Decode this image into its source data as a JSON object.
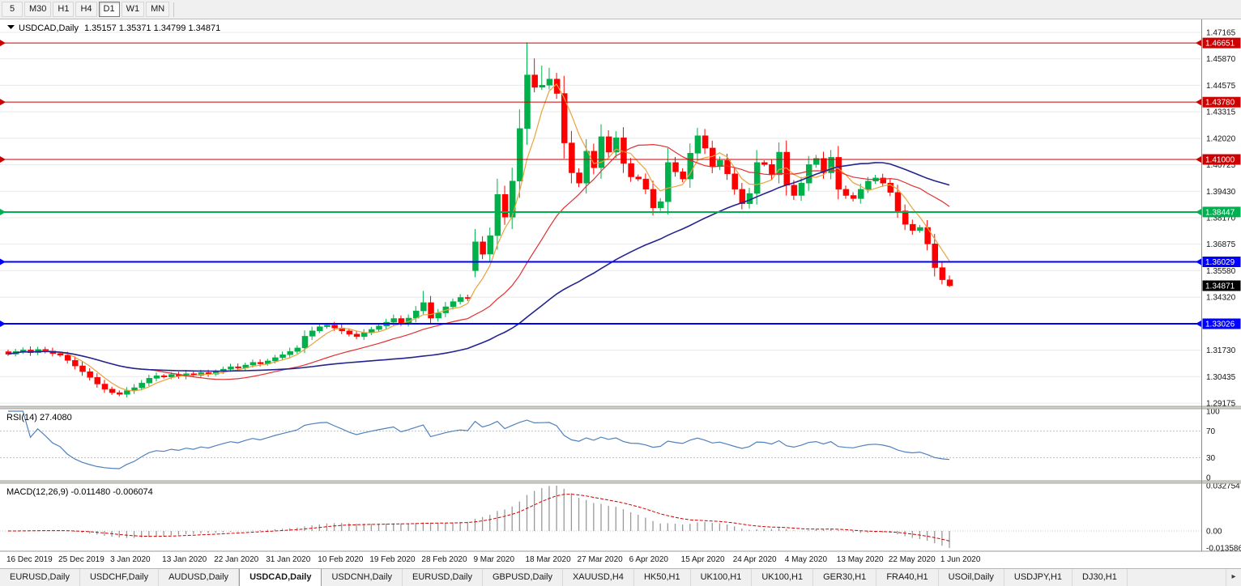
{
  "toolbar": {
    "periods": [
      {
        "label": "5",
        "active": false
      },
      {
        "label": "M30",
        "active": false
      },
      {
        "label": "H1",
        "active": false
      },
      {
        "label": "H4",
        "active": false
      },
      {
        "label": "D1",
        "active": true
      },
      {
        "label": "W1",
        "active": false
      },
      {
        "label": "MN",
        "active": false
      }
    ]
  },
  "chart": {
    "symbol": "USDCAD,Daily",
    "ohlc_readout": "1.35157 1.35371 1.34799 1.34871",
    "price_axis_ticks": [
      "1.47165",
      "1.45870",
      "1.44575",
      "1.43315",
      "1.42020",
      "1.40725",
      "1.39430",
      "1.38170",
      "1.36875",
      "1.35580",
      "1.34320",
      "1.33030",
      "1.31730",
      "1.30435",
      "1.29175"
    ],
    "levels": [
      {
        "price": 1.46651,
        "label": "1.46651",
        "color": "#cc0000",
        "width": 1
      },
      {
        "price": 1.4378,
        "label": "1.43780",
        "color": "#cc0000",
        "width": 1
      },
      {
        "price": 1.41,
        "label": "1.41000",
        "color": "#cc0000",
        "width": 1
      },
      {
        "price": 1.38447,
        "label": "1.38447",
        "color": "#00b050",
        "width": 2
      },
      {
        "price": 1.36029,
        "label": "1.36029",
        "color": "#0000ff",
        "width": 2
      },
      {
        "price": 1.33026,
        "label": "1.33026",
        "color": "#0000ff",
        "width": 2
      }
    ],
    "current_price": {
      "price": 1.34871,
      "label": "1.34871",
      "color": "#000000"
    }
  },
  "chart_data": {
    "type": "candlestick",
    "title": "USDCAD,Daily",
    "x_labels": [
      "16 Dec 2019",
      "25 Dec 2019",
      "3 Jan 2020",
      "13 Jan 2020",
      "22 Jan 2020",
      "31 Jan 2020",
      "10 Feb 2020",
      "19 Feb 2020",
      "28 Feb 2020",
      "9 Mar 2020",
      "18 Mar 2020",
      "27 Mar 2020",
      "6 Apr 2020",
      "15 Apr 2020",
      "24 Apr 2020",
      "4 May 2020",
      "13 May 2020",
      "22 May 2020",
      "1 Jun 2020"
    ],
    "label_every": 7,
    "y_range": {
      "top_tick": 1.47165,
      "bottom_tick": 1.29175
    },
    "closes": [
      1.3155,
      1.3168,
      1.3175,
      1.3162,
      1.3178,
      1.317,
      1.3158,
      1.315,
      1.3125,
      1.3098,
      1.307,
      1.3042,
      1.301,
      1.2985,
      1.2968,
      1.296,
      1.2978,
      1.2992,
      1.3015,
      1.3038,
      1.305,
      1.3044,
      1.3056,
      1.3048,
      1.306,
      1.3052,
      1.3065,
      1.3058,
      1.307,
      1.3082,
      1.3094,
      1.3088,
      1.3102,
      1.3115,
      1.3108,
      1.3122,
      1.3138,
      1.3152,
      1.3168,
      1.3185,
      1.3242,
      1.3268,
      1.3288,
      1.3296,
      1.3282,
      1.3268,
      1.3252,
      1.324,
      1.3258,
      1.3275,
      1.3292,
      1.331,
      1.3328,
      1.3305,
      1.333,
      1.3365,
      1.3405,
      1.333,
      1.3355,
      1.3385,
      1.341,
      1.343,
      1.3425,
      1.37,
      1.364,
      1.373,
      1.393,
      1.382,
      1.3995,
      1.425,
      1.451,
      1.445,
      1.446,
      1.449,
      1.442,
      1.418,
      1.4035,
      1.3985,
      1.414,
      1.406,
      1.421,
      1.4135,
      1.4205,
      1.408,
      1.4015,
      1.4005,
      1.3955,
      1.3865,
      1.3895,
      1.4085,
      1.404,
      1.4005,
      1.413,
      1.4215,
      1.4155,
      1.4065,
      1.4095,
      1.403,
      1.3955,
      1.3885,
      1.3935,
      1.4085,
      1.4075,
      1.4025,
      1.4135,
      1.3975,
      1.3925,
      1.3985,
      1.4075,
      1.4105,
      1.4035,
      1.411,
      1.3955,
      1.3925,
      1.391,
      1.3955,
      1.3995,
      1.401,
      1.3985,
      1.394,
      1.385,
      1.3785,
      1.3755,
      1.377,
      1.369,
      1.3575,
      1.3516,
      1.34871
    ],
    "candle_overrides": {
      "56": {
        "h": 1.3462
      },
      "63": {
        "o": 1.356,
        "h": 1.3762,
        "l": 1.3528
      },
      "70": {
        "h": 1.4668
      },
      "71": {
        "h": 1.459
      },
      "72": {
        "h": 1.4556
      },
      "73": {
        "h": 1.4545
      },
      "127": {
        "o": 1.35157,
        "h": 1.35371,
        "l": 1.34799,
        "c": 1.34871
      }
    },
    "up_color": "#00b04a",
    "down_color": "#ff0000",
    "moving_averages": [
      {
        "period": 5,
        "color": "#e8a33d"
      },
      {
        "period": 20,
        "color": "#e03030"
      },
      {
        "period": 50,
        "color": "#24248f"
      }
    ],
    "rsi": {
      "label": "RSI(14) 27.4080",
      "period": 14,
      "line_color": "#4f81bd",
      "ticks": [
        "100",
        "70",
        "30",
        "0"
      ],
      "levels": [
        70,
        30
      ]
    },
    "macd": {
      "label": "MACD(12,26,9) -0.011480 -0.006074",
      "fast": 12,
      "slow": 26,
      "signal": 9,
      "hist_color": "#999999",
      "signal_color": "#cc0000",
      "ticks": [
        {
          "pos": "max",
          "label": "0.032754"
        },
        {
          "pos": "zero",
          "label": "0.00"
        },
        {
          "pos": "min",
          "label": "-0.013586"
        }
      ]
    }
  },
  "tabs": {
    "items": [
      {
        "label": "EURUSD,Daily",
        "active": false
      },
      {
        "label": "USDCHF,Daily",
        "active": false
      },
      {
        "label": "AUDUSD,Daily",
        "active": false
      },
      {
        "label": "USDCAD,Daily",
        "active": true
      },
      {
        "label": "USDCNH,Daily",
        "active": false
      },
      {
        "label": "EURUSD,Daily",
        "active": false
      },
      {
        "label": "GBPUSD,Daily",
        "active": false
      },
      {
        "label": "XAUUSD,H4",
        "active": false
      },
      {
        "label": "HK50,H1",
        "active": false
      },
      {
        "label": "UK100,H1",
        "active": false
      },
      {
        "label": "UK100,H1",
        "active": false
      },
      {
        "label": "GER30,H1",
        "active": false
      },
      {
        "label": "FRA40,H1",
        "active": false
      },
      {
        "label": "USOil,Daily",
        "active": false
      },
      {
        "label": "USDJPY,H1",
        "active": false
      },
      {
        "label": "DJ30,H1",
        "active": false
      }
    ],
    "scroll_right_icon": "▸"
  }
}
